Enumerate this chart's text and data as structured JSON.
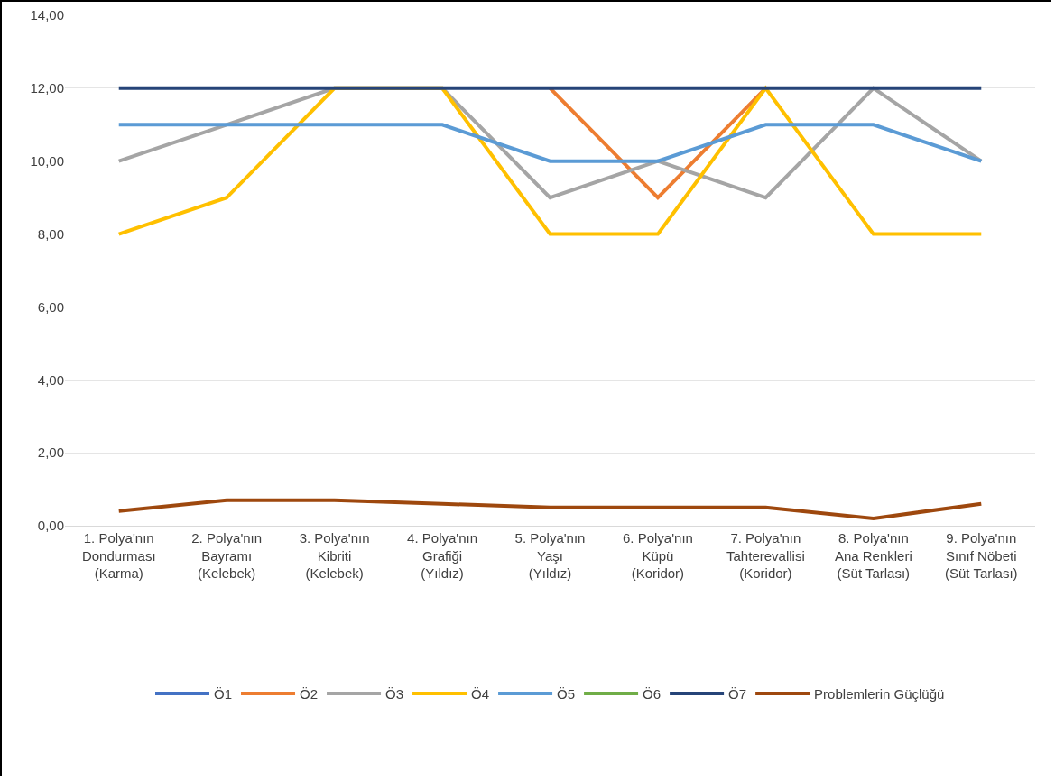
{
  "chart_data": {
    "type": "line",
    "categories": [
      "1. Polya'nın\nDondurması\n(Karma)",
      "2. Polya'nın\nBayramı\n(Kelebek)",
      "3. Polya'nın\nKibriti\n(Kelebek)",
      "4. Polya'nın\nGrafiği\n(Yıldız)",
      "5. Polya'nın\nYaşı\n(Yıldız)",
      "6. Polya'nın\nKüpü\n(Koridor)",
      "7. Polya'nın\nTahterevallisi\n(Koridor)",
      "8. Polya'nın\nAna Renkleri\n(Süt Tarlası)",
      "9. Polya'nın\nSınıf Nöbeti\n(Süt Tarlası)"
    ],
    "series": [
      {
        "name": "Ö1",
        "color": "#4472c4",
        "values": [
          null,
          null,
          null,
          null,
          null,
          null,
          null,
          null,
          null
        ]
      },
      {
        "name": "Ö2",
        "color": "#ed7d31",
        "values": [
          null,
          null,
          null,
          null,
          12,
          9,
          12,
          null,
          null
        ]
      },
      {
        "name": "Ö3",
        "color": "#a5a5a5",
        "values": [
          10,
          11,
          12,
          12,
          9,
          10,
          9,
          12,
          10
        ]
      },
      {
        "name": "Ö4",
        "color": "#ffc000",
        "values": [
          8,
          9,
          12,
          12,
          8,
          8,
          12,
          8,
          8
        ]
      },
      {
        "name": "Ö5",
        "color": "#5b9bd5",
        "values": [
          11,
          11,
          11,
          11,
          10,
          10,
          11,
          11,
          10
        ]
      },
      {
        "name": "Ö6",
        "color": "#70ad47",
        "values": [
          null,
          null,
          null,
          null,
          null,
          null,
          null,
          null,
          null
        ]
      },
      {
        "name": "Ö7",
        "color": "#264478",
        "values": [
          12,
          12,
          12,
          12,
          12,
          12,
          12,
          12,
          12
        ]
      },
      {
        "name": "Problemlerin Güçlüğü",
        "color": "#9e480e",
        "values": [
          0.4,
          0.7,
          0.7,
          0.6,
          0.5,
          0.5,
          0.5,
          0.2,
          0.6
        ]
      }
    ],
    "ylim": [
      0,
      14
    ],
    "yticks": [
      {
        "value": 0,
        "label": "0,00"
      },
      {
        "value": 2,
        "label": "2,00"
      },
      {
        "value": 4,
        "label": "4,00"
      },
      {
        "value": 6,
        "label": "6,00"
      },
      {
        "value": 8,
        "label": "8,00"
      },
      {
        "value": 10,
        "label": "10,00"
      },
      {
        "value": 12,
        "label": "12,00"
      },
      {
        "value": 14,
        "label": "14,00"
      }
    ],
    "grid": "y",
    "legend": "bottom",
    "marker": "none",
    "line_style": "solid"
  }
}
